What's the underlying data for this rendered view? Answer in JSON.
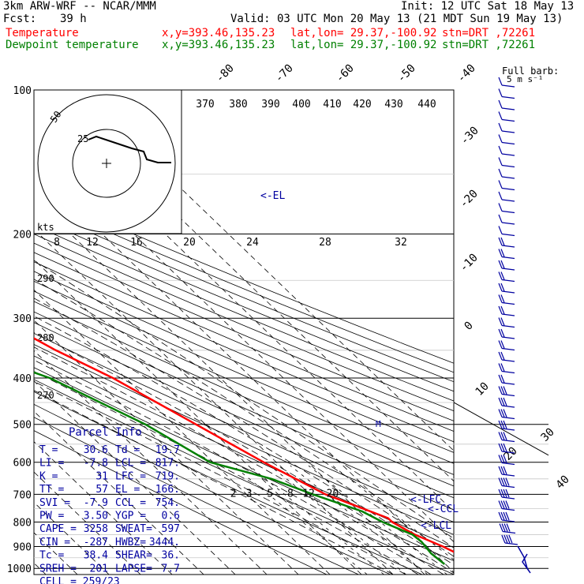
{
  "header": {
    "model": "3km ARW-WRF -- NCAR/MMM",
    "init": "Init: 12 UTC Sat 18 May 13",
    "fcst_label": "Fcst:",
    "fcst_value": "39 h",
    "valid": "Valid: 03 UTC Mon 20 May 13 (21 MDT Sun 19 May 13)"
  },
  "legend": {
    "temperature": "Temperature",
    "dewpoint": "Dewpoint temperature",
    "xy": "x,y=393.46,135.23",
    "latlon": "lat,lon= 29.37,-100.92",
    "stn": "stn=DRT ,72261",
    "temp_color": "#ff0000",
    "dew_color": "#008000"
  },
  "barb_legend": {
    "title": "Full barb:",
    "value": "5 m s⁻¹"
  },
  "chart_data": {
    "type": "line",
    "title": "",
    "y_axis": {
      "label": "pressure (hPa)",
      "scale": "log",
      "ticks": [
        "100",
        "200",
        "300",
        "400",
        "500",
        "600",
        "700",
        "800",
        "900",
        "1000"
      ],
      "range": [
        100,
        1000
      ]
    },
    "isotherm_labels": [
      "-80",
      "-70",
      "-60",
      "-50",
      "-40",
      "-30",
      "-20",
      "-10",
      "0",
      "10",
      "20",
      "30",
      "40"
    ],
    "theta_labels": [
      "370",
      "380",
      "390",
      "400",
      "410",
      "420",
      "430",
      "440"
    ],
    "mixing_ratio_labels": [
      "2",
      "3",
      "5",
      "8",
      "12",
      "20"
    ],
    "hodograph": {
      "kts_label": "kts",
      "speed_labels": [
        "8",
        "12",
        "16",
        "20",
        "24",
        "28",
        "32"
      ],
      "ring_labels": [
        "25",
        "50"
      ],
      "side_labels": [
        "290",
        "280",
        "270"
      ]
    },
    "series": [
      {
        "name": "Temperature",
        "color": "#ff0000",
        "points": [
          [
            100,
            -60
          ],
          [
            120,
            -62
          ],
          [
            150,
            -58
          ],
          [
            175,
            -58
          ],
          [
            200,
            -57
          ],
          [
            250,
            -50
          ],
          [
            300,
            -41
          ],
          [
            350,
            -33
          ],
          [
            400,
            -24
          ],
          [
            500,
            -13
          ],
          [
            600,
            -4
          ],
          [
            700,
            5
          ],
          [
            785,
            17
          ],
          [
            800,
            17
          ],
          [
            850,
            20
          ],
          [
            900,
            25
          ],
          [
            980,
            30.6
          ]
        ]
      },
      {
        "name": "Dewpoint temperature",
        "color": "#008000",
        "points": [
          [
            100,
            -95
          ],
          [
            150,
            -92
          ],
          [
            200,
            -82
          ],
          [
            250,
            -80
          ],
          [
            300,
            -73
          ],
          [
            350,
            -60
          ],
          [
            400,
            -44
          ],
          [
            500,
            -29
          ],
          [
            600,
            -21
          ],
          [
            650,
            -7
          ],
          [
            700,
            1
          ],
          [
            760,
            11
          ],
          [
            800,
            14
          ],
          [
            850,
            19.3
          ],
          [
            880,
            19.8
          ],
          [
            930,
            19
          ],
          [
            980,
            19.7
          ]
        ]
      }
    ],
    "level_labels": {
      "el": "<-EL",
      "lfc": "<-LFC",
      "ccl": "<-CCL",
      "lcl": "<-LCL"
    },
    "parcel_info": {
      "title": "Parcel Info",
      "rows": [
        [
          "T  =",
          "30.6",
          "Td =",
          "19.7"
        ],
        [
          "LI =",
          "-7.8",
          "LCL =",
          "817."
        ],
        [
          "K  =",
          "31",
          "LFC =",
          "719."
        ],
        [
          "TT =",
          "57",
          "EL  =",
          "166."
        ],
        [
          "SVI =",
          "-7.9",
          "CCL =",
          "754."
        ],
        [
          "PW =",
          "3.50",
          "YGP =",
          "0.6"
        ],
        [
          "CAPE =",
          "3258",
          "SWEAT=",
          "597"
        ],
        [
          "CIN =",
          "-287",
          "HWBZ=",
          "3444."
        ],
        [
          "Tc =",
          "38.4",
          "SHEAR=",
          "36."
        ],
        [
          "SREH =",
          "201",
          "LAPSE=",
          "7.7"
        ]
      ],
      "cell": "CELL = 259/23"
    }
  }
}
